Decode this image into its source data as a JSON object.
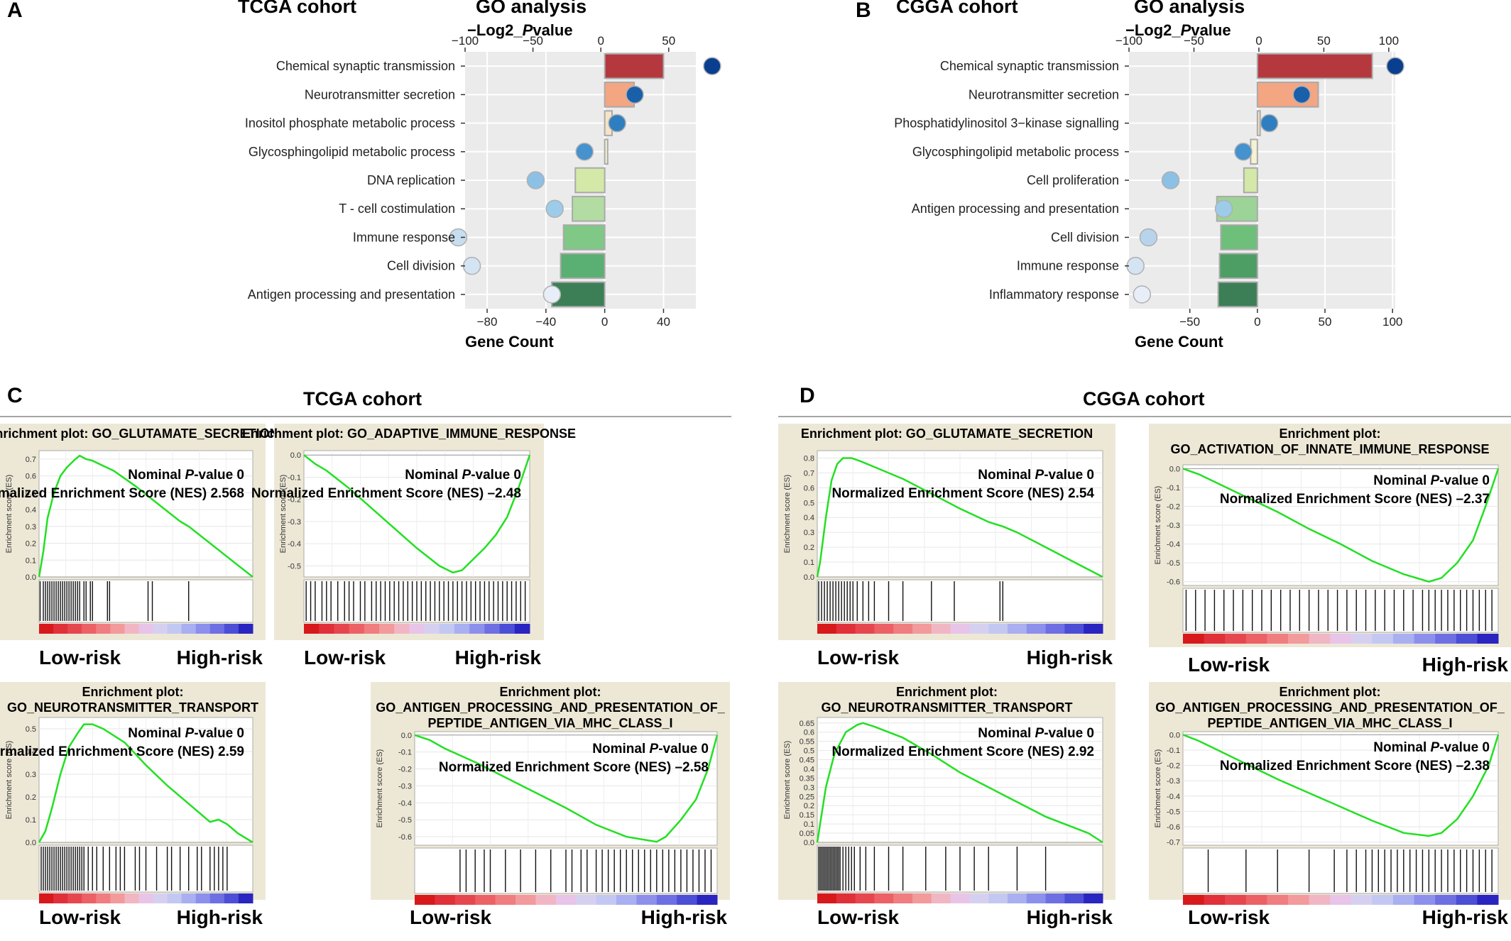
{
  "panels": {
    "A": "A",
    "B": "B",
    "C": "C",
    "D": "D"
  },
  "chart_data": [
    {
      "id": "A",
      "type": "bar",
      "cohort": "TCGA cohort",
      "title": "GO analysis",
      "top_axis_label": "−Log2_Pvalue",
      "bottom_axis_label": "Gene Count",
      "top_ticks": [
        -100,
        -50,
        0,
        50
      ],
      "bottom_ticks": [
        -80,
        -40,
        0,
        40
      ],
      "xlim": [
        -95,
        62
      ],
      "categories": [
        "Chemical synaptic transmission",
        "Neurotransmitter secretion",
        "Inositol phosphate metabolic process",
        "Glycosphingolipid metabolic process",
        "DNA replication",
        "T - cell costimulation",
        "Immune response",
        "Cell division",
        "Antigen processing and presentation"
      ],
      "gene_count": [
        40,
        20,
        5,
        2,
        -20,
        -22,
        -28,
        -30,
        -36
      ],
      "log2_pvalue": [
        82,
        25,
        12,
        -12,
        -48,
        -34,
        -105,
        -95,
        -36
      ],
      "bar_colors": [
        "#b5383f",
        "#f4a582",
        "#f7e3c6",
        "#f4f2d2",
        "#d4e8a8",
        "#b2dca1",
        "#7fc886",
        "#5aaf72",
        "#3c7f56"
      ],
      "dot_colors": [
        "#0a3f8f",
        "#1a5faa",
        "#2f7fc0",
        "#4592ce",
        "#8cc0e4",
        "#9dcbea",
        "#c7ddf0",
        "#d4e4f3",
        "#e8eef7"
      ]
    },
    {
      "id": "B",
      "type": "bar",
      "cohort": "CGGA cohort",
      "title": "GO analysis",
      "top_axis_label": "−Log2_Pvalue",
      "bottom_axis_label": "Gene Count",
      "top_ticks": [
        -100,
        -50,
        0,
        50,
        100
      ],
      "bottom_ticks": [
        -50,
        0,
        50,
        100
      ],
      "xlim": [
        -95,
        102
      ],
      "categories": [
        "Chemical synaptic transmission",
        "Neurotransmitter secretion",
        "Phosphatidylinositol 3−kinase signalling",
        "Glycosphingolipid metabolic process",
        "Cell proliferation",
        "Antigen processing and presentation",
        "Cell division",
        "Immune response",
        "Inflammatory response"
      ],
      "gene_count": [
        85,
        45,
        2,
        -5,
        -10,
        -30,
        -27,
        -28,
        -29
      ],
      "log2_pvalue": [
        105,
        33,
        8,
        -12,
        -68,
        -27,
        -85,
        -95,
        -90
      ],
      "bar_colors": [
        "#b5383f",
        "#f4a582",
        "#f7e3c6",
        "#f4f2d2",
        "#d4e8a8",
        "#9cd396",
        "#6dbf7a",
        "#4c9e64",
        "#3c7f56"
      ],
      "dot_colors": [
        "#0a3f8f",
        "#1a5faa",
        "#2f7fc0",
        "#4592ce",
        "#8cc0e4",
        "#9dcbea",
        "#b8d4ec",
        "#d4e4f3",
        "#e8eef7"
      ]
    },
    {
      "id": "C1",
      "type": "line",
      "title_lines": [
        "Enrichment plot: GO_GLUTAMATE_SECRETION"
      ],
      "ylabel": "Enrichment score (ES)",
      "ylim": [
        0,
        0.75
      ],
      "yticks": [
        0.0,
        0.1,
        0.2,
        0.3,
        0.4,
        0.5,
        0.6,
        0.7
      ],
      "pvalue_label": "Nominal",
      "pvalue_value": "0",
      "nes_label": "Normalized Enrichment Score (NES)",
      "nes_value": "2.568",
      "curve": [
        [
          0,
          0
        ],
        [
          0.02,
          0.15
        ],
        [
          0.04,
          0.35
        ],
        [
          0.07,
          0.5
        ],
        [
          0.1,
          0.6
        ],
        [
          0.13,
          0.65
        ],
        [
          0.17,
          0.7
        ],
        [
          0.19,
          0.72
        ],
        [
          0.22,
          0.7
        ],
        [
          0.25,
          0.69
        ],
        [
          0.3,
          0.66
        ],
        [
          0.35,
          0.63
        ],
        [
          0.45,
          0.54
        ],
        [
          0.55,
          0.44
        ],
        [
          0.66,
          0.33
        ],
        [
          0.7,
          0.3
        ],
        [
          0.8,
          0.2
        ],
        [
          0.9,
          0.1
        ],
        [
          1,
          0
        ]
      ],
      "hits": [
        0.005,
        0.02,
        0.03,
        0.04,
        0.05,
        0.06,
        0.07,
        0.08,
        0.09,
        0.1,
        0.11,
        0.12,
        0.13,
        0.14,
        0.15,
        0.16,
        0.17,
        0.18,
        0.19,
        0.21,
        0.22,
        0.24,
        0.25,
        0.32,
        0.33,
        0.51,
        0.53,
        0.7
      ],
      "low_label": "Low-risk",
      "high_label": "High-risk"
    },
    {
      "id": "C2",
      "type": "line",
      "title_lines": [
        "Enrichment plot: GO_ADAPTIVE_IMMUNE_RESPONSE"
      ],
      "ylabel": "Enrichment score (ES)",
      "ylim": [
        -0.55,
        0.02
      ],
      "yticks": [
        0.0,
        -0.1,
        -0.2,
        -0.3,
        -0.4,
        -0.5
      ],
      "pvalue_label": "Nominal",
      "pvalue_value": "0",
      "nes_label": "Normalized Enrichment Score (NES)",
      "nes_value": "–2.48",
      "curve": [
        [
          0,
          0
        ],
        [
          0.05,
          -0.04
        ],
        [
          0.1,
          -0.07
        ],
        [
          0.2,
          -0.15
        ],
        [
          0.3,
          -0.24
        ],
        [
          0.4,
          -0.33
        ],
        [
          0.5,
          -0.42
        ],
        [
          0.6,
          -0.5
        ],
        [
          0.66,
          -0.53
        ],
        [
          0.7,
          -0.52
        ],
        [
          0.75,
          -0.47
        ],
        [
          0.8,
          -0.42
        ],
        [
          0.85,
          -0.36
        ],
        [
          0.9,
          -0.28
        ],
        [
          0.95,
          -0.15
        ],
        [
          1,
          0
        ]
      ],
      "hits": [
        0.01,
        0.03,
        0.05,
        0.08,
        0.1,
        0.12,
        0.15,
        0.18,
        0.2,
        0.22,
        0.25,
        0.27,
        0.3,
        0.32,
        0.34,
        0.36,
        0.38,
        0.4,
        0.42,
        0.44,
        0.46,
        0.48,
        0.5,
        0.52,
        0.54,
        0.56,
        0.58,
        0.6,
        0.62,
        0.64,
        0.66,
        0.68,
        0.7,
        0.72,
        0.74,
        0.76,
        0.78,
        0.8,
        0.82,
        0.84,
        0.86,
        0.88,
        0.9,
        0.92,
        0.94,
        0.96,
        0.98
      ],
      "low_label": "Low-risk",
      "high_label": "High-risk"
    },
    {
      "id": "C3",
      "type": "line",
      "title_lines": [
        "Enrichment plot:",
        "GO_NEUROTRANSMITTER_TRANSPORT"
      ],
      "ylabel": "Enrichment score (ES)",
      "ylim": [
        0,
        0.55
      ],
      "yticks": [
        0.0,
        0.1,
        0.2,
        0.3,
        0.4,
        0.5
      ],
      "pvalue_label": "Nominal",
      "pvalue_value": "0",
      "nes_label": "Normalized Enrichment Score (NES)",
      "nes_value": "2.59",
      "curve": [
        [
          0,
          0
        ],
        [
          0.03,
          0.05
        ],
        [
          0.06,
          0.15
        ],
        [
          0.1,
          0.3
        ],
        [
          0.14,
          0.42
        ],
        [
          0.18,
          0.48
        ],
        [
          0.21,
          0.52
        ],
        [
          0.25,
          0.52
        ],
        [
          0.3,
          0.5
        ],
        [
          0.4,
          0.44
        ],
        [
          0.5,
          0.34
        ],
        [
          0.6,
          0.25
        ],
        [
          0.7,
          0.17
        ],
        [
          0.8,
          0.09
        ],
        [
          0.84,
          0.1
        ],
        [
          0.88,
          0.08
        ],
        [
          0.93,
          0.04
        ],
        [
          1,
          0
        ]
      ],
      "hits": [
        0.01,
        0.02,
        0.03,
        0.04,
        0.05,
        0.06,
        0.07,
        0.08,
        0.09,
        0.1,
        0.11,
        0.12,
        0.13,
        0.14,
        0.15,
        0.16,
        0.17,
        0.18,
        0.19,
        0.2,
        0.21,
        0.23,
        0.25,
        0.27,
        0.3,
        0.33,
        0.36,
        0.38,
        0.4,
        0.45,
        0.47,
        0.5,
        0.55,
        0.6,
        0.62,
        0.66,
        0.7,
        0.74,
        0.76,
        0.8,
        0.82,
        0.84,
        0.86,
        0.88
      ],
      "low_label": "Low-risk",
      "high_label": "High-risk"
    },
    {
      "id": "C4",
      "type": "line",
      "title_lines": [
        "Enrichment plot:",
        "GO_ANTIGEN_PROCESSING_AND_PRESENTATION_OF_",
        "PEPTIDE_ANTIGEN_VIA_MHC_CLASS_I"
      ],
      "ylabel": "Enrichment score (ES)",
      "ylim": [
        -0.65,
        0.02
      ],
      "yticks": [
        0.0,
        -0.1,
        -0.2,
        -0.3,
        -0.4,
        -0.5,
        -0.6
      ],
      "pvalue_label": "Nominal",
      "pvalue_value": "0",
      "nes_label": "Normalized Enrichment Score (NES)",
      "nes_value": "–2.58",
      "curve": [
        [
          0,
          0
        ],
        [
          0.05,
          -0.03
        ],
        [
          0.1,
          -0.08
        ],
        [
          0.2,
          -0.16
        ],
        [
          0.3,
          -0.25
        ],
        [
          0.4,
          -0.34
        ],
        [
          0.5,
          -0.43
        ],
        [
          0.6,
          -0.53
        ],
        [
          0.7,
          -0.6
        ],
        [
          0.8,
          -0.63
        ],
        [
          0.83,
          -0.6
        ],
        [
          0.88,
          -0.5
        ],
        [
          0.93,
          -0.38
        ],
        [
          0.97,
          -0.2
        ],
        [
          1,
          0
        ]
      ],
      "hits": [
        0.15,
        0.17,
        0.2,
        0.23,
        0.25,
        0.3,
        0.35,
        0.4,
        0.45,
        0.5,
        0.52,
        0.55,
        0.57,
        0.6,
        0.62,
        0.64,
        0.66,
        0.68,
        0.7,
        0.72,
        0.74,
        0.76,
        0.78,
        0.8,
        0.82,
        0.84,
        0.86,
        0.88,
        0.9,
        0.92,
        0.94,
        0.96,
        0.98
      ],
      "low_label": "Low-risk",
      "high_label": "High-risk"
    },
    {
      "id": "D1",
      "type": "line",
      "title_lines": [
        "Enrichment plot: GO_GLUTAMATE_SECRETION"
      ],
      "ylabel": "Enrichment score (ES)",
      "ylim": [
        0,
        0.85
      ],
      "yticks": [
        0.0,
        0.1,
        0.2,
        0.3,
        0.4,
        0.5,
        0.6,
        0.7,
        0.8
      ],
      "pvalue_label": "Nominal",
      "pvalue_value": "0",
      "nes_label": "Normalized Enrichment Score (NES)",
      "nes_value": "2.54",
      "curve": [
        [
          0,
          0
        ],
        [
          0.01,
          0.1
        ],
        [
          0.03,
          0.4
        ],
        [
          0.05,
          0.65
        ],
        [
          0.07,
          0.76
        ],
        [
          0.09,
          0.8
        ],
        [
          0.12,
          0.8
        ],
        [
          0.15,
          0.78
        ],
        [
          0.2,
          0.74
        ],
        [
          0.3,
          0.66
        ],
        [
          0.4,
          0.56
        ],
        [
          0.5,
          0.46
        ],
        [
          0.6,
          0.37
        ],
        [
          0.65,
          0.34
        ],
        [
          0.7,
          0.3
        ],
        [
          0.8,
          0.2
        ],
        [
          0.9,
          0.1
        ],
        [
          1,
          0
        ]
      ],
      "hits": [
        0.005,
        0.015,
        0.025,
        0.035,
        0.045,
        0.055,
        0.065,
        0.075,
        0.085,
        0.095,
        0.105,
        0.115,
        0.125,
        0.14,
        0.16,
        0.18,
        0.2,
        0.25,
        0.3,
        0.4,
        0.48,
        0.64,
        0.65
      ],
      "low_label": "Low-risk",
      "high_label": "High-risk"
    },
    {
      "id": "D2",
      "type": "line",
      "title_lines": [
        "Enrichment plot:",
        "GO_ACTIVATION_OF_INNATE_IMMUNE_RESPONSE"
      ],
      "ylabel": "Enrichment score (ES)",
      "ylim": [
        -0.62,
        0.02
      ],
      "yticks": [
        0.0,
        -0.1,
        -0.2,
        -0.3,
        -0.4,
        -0.5,
        -0.6
      ],
      "pvalue_label": "Nominal",
      "pvalue_value": "0",
      "nes_label": "Normalized Enrichment Score (NES)",
      "nes_value": "–2.37",
      "curve": [
        [
          0,
          0
        ],
        [
          0.05,
          -0.03
        ],
        [
          0.1,
          -0.07
        ],
        [
          0.2,
          -0.15
        ],
        [
          0.3,
          -0.23
        ],
        [
          0.4,
          -0.32
        ],
        [
          0.5,
          -0.4
        ],
        [
          0.6,
          -0.49
        ],
        [
          0.7,
          -0.56
        ],
        [
          0.78,
          -0.6
        ],
        [
          0.82,
          -0.58
        ],
        [
          0.87,
          -0.5
        ],
        [
          0.92,
          -0.38
        ],
        [
          0.96,
          -0.2
        ],
        [
          1,
          0
        ]
      ],
      "hits": [
        0.01,
        0.04,
        0.07,
        0.1,
        0.13,
        0.16,
        0.19,
        0.22,
        0.25,
        0.28,
        0.31,
        0.34,
        0.37,
        0.4,
        0.43,
        0.46,
        0.49,
        0.52,
        0.55,
        0.58,
        0.61,
        0.64,
        0.67,
        0.7,
        0.73,
        0.76,
        0.78,
        0.8,
        0.82,
        0.84,
        0.86,
        0.88,
        0.9,
        0.92,
        0.94,
        0.96,
        0.98
      ],
      "low_label": "Low-risk",
      "high_label": "High-risk"
    },
    {
      "id": "D3",
      "type": "line",
      "title_lines": [
        "Enrichment plot:",
        "GO_NEUROTRANSMITTER_TRANSPORT"
      ],
      "ylabel": "Enrichment score (ES)",
      "ylim": [
        0,
        0.68
      ],
      "yticks": [
        0.0,
        0.05,
        0.1,
        0.15,
        0.2,
        0.25,
        0.3,
        0.35,
        0.4,
        0.45,
        0.5,
        0.55,
        0.6,
        0.65
      ],
      "pvalue_label": "Nominal",
      "pvalue_value": "0",
      "nes_label": "Normalized Enrichment Score (NES)",
      "nes_value": "2.92",
      "curve": [
        [
          0,
          0
        ],
        [
          0.01,
          0.1
        ],
        [
          0.03,
          0.3
        ],
        [
          0.06,
          0.48
        ],
        [
          0.1,
          0.6
        ],
        [
          0.14,
          0.64
        ],
        [
          0.16,
          0.65
        ],
        [
          0.2,
          0.63
        ],
        [
          0.3,
          0.57
        ],
        [
          0.4,
          0.48
        ],
        [
          0.5,
          0.38
        ],
        [
          0.6,
          0.3
        ],
        [
          0.7,
          0.22
        ],
        [
          0.8,
          0.14
        ],
        [
          0.9,
          0.08
        ],
        [
          0.95,
          0.05
        ],
        [
          1,
          0
        ]
      ],
      "hits": [
        0.005,
        0.01,
        0.015,
        0.02,
        0.025,
        0.03,
        0.035,
        0.04,
        0.045,
        0.05,
        0.055,
        0.06,
        0.065,
        0.07,
        0.075,
        0.08,
        0.09,
        0.1,
        0.11,
        0.12,
        0.13,
        0.15,
        0.17,
        0.2,
        0.25,
        0.3,
        0.38,
        0.45,
        0.5,
        0.55,
        0.6,
        0.7,
        0.8
      ],
      "low_label": "Low-risk",
      "high_label": "High-risk"
    },
    {
      "id": "D4",
      "type": "line",
      "title_lines": [
        "Enrichment plot:",
        "GO_ANTIGEN_PROCESSING_AND_PRESENTATION_OF_",
        "PEPTIDE_ANTIGEN_VIA_MHC_CLASS_I"
      ],
      "ylabel": "Enrichment score (ES)",
      "ylim": [
        -0.72,
        0.02
      ],
      "yticks": [
        0.0,
        -0.1,
        -0.2,
        -0.3,
        -0.4,
        -0.5,
        -0.6,
        -0.7
      ],
      "pvalue_label": "Nominal",
      "pvalue_value": "0",
      "nes_label": "Normalized Enrichment Score (NES)",
      "nes_value": "–2.38",
      "curve": [
        [
          0,
          0
        ],
        [
          0.05,
          -0.04
        ],
        [
          0.1,
          -0.09
        ],
        [
          0.2,
          -0.19
        ],
        [
          0.3,
          -0.29
        ],
        [
          0.4,
          -0.38
        ],
        [
          0.5,
          -0.47
        ],
        [
          0.6,
          -0.56
        ],
        [
          0.7,
          -0.64
        ],
        [
          0.78,
          -0.66
        ],
        [
          0.82,
          -0.64
        ],
        [
          0.87,
          -0.55
        ],
        [
          0.92,
          -0.4
        ],
        [
          0.97,
          -0.2
        ],
        [
          1,
          0
        ]
      ],
      "hits": [
        0.08,
        0.2,
        0.3,
        0.4,
        0.48,
        0.52,
        0.55,
        0.58,
        0.6,
        0.62,
        0.64,
        0.66,
        0.68,
        0.7,
        0.72,
        0.74,
        0.76,
        0.78,
        0.8,
        0.82,
        0.84,
        0.86,
        0.88,
        0.9,
        0.92,
        0.94,
        0.96,
        0.98
      ],
      "low_label": "Low-risk",
      "high_label": "High-risk"
    }
  ],
  "sections": {
    "C_title": "TCGA cohort",
    "D_title": "CGGA cohort"
  },
  "pvalue_suffix": "-value"
}
